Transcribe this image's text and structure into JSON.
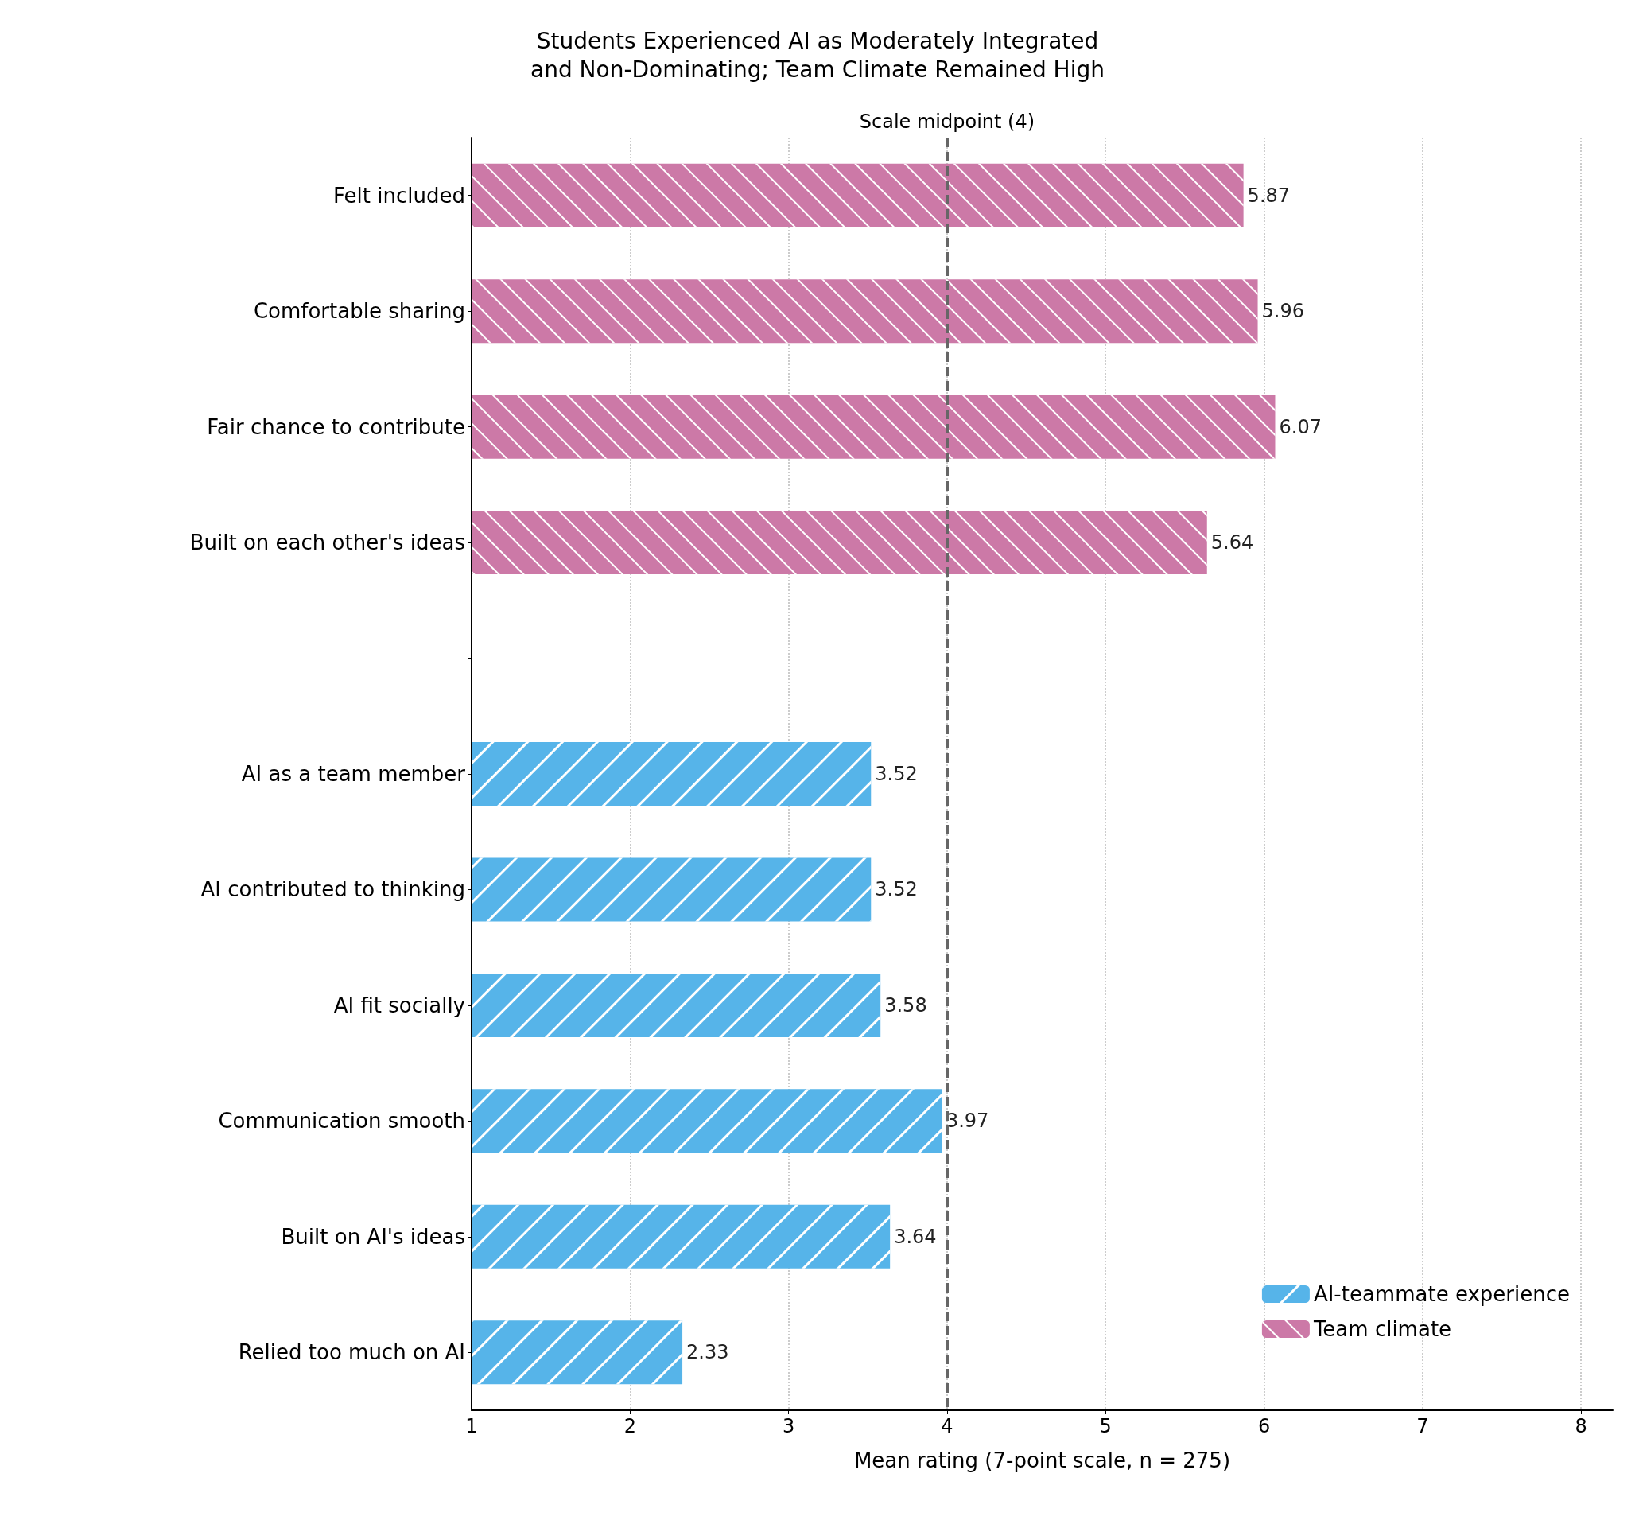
{
  "chart_data": {
    "type": "bar",
    "orientation": "horizontal",
    "title": "Students Experienced AI as Moderately Integrated\nand Non-Dominating; Team Climate Remained High",
    "xlabel": "Mean rating (7-point scale, n = 275)",
    "categories": [
      "Felt included",
      "Comfortable sharing",
      "Fair chance to contribute",
      "Built on each other's ideas",
      null,
      "AI as a team member",
      "AI contributed to thinking",
      "AI fit socially",
      "Communication smooth",
      "Built on AI's ideas",
      "Relied too much on AI"
    ],
    "series": [
      {
        "name": "AI-teammate experience",
        "color": "#56b4e9",
        "values": [
          null,
          null,
          null,
          null,
          null,
          3.52,
          3.52,
          3.58,
          3.97,
          3.64,
          2.33
        ]
      },
      {
        "name": "Team climate",
        "color": "#cc79a7",
        "values": [
          5.87,
          5.96,
          6.07,
          5.64,
          null,
          null,
          null,
          null,
          null,
          null,
          null
        ]
      }
    ],
    "xlim": [
      1,
      8.2
    ],
    "xticks": [
      1,
      2,
      3,
      4,
      5,
      6,
      7,
      8
    ],
    "grid": "x",
    "legend": "bottom right",
    "data_labels": true,
    "ref_lines": [
      {
        "axis": "x",
        "value": 4,
        "label": "Scale midpoint (4)",
        "color": "#666666",
        "line_style": "dashed"
      }
    ]
  }
}
